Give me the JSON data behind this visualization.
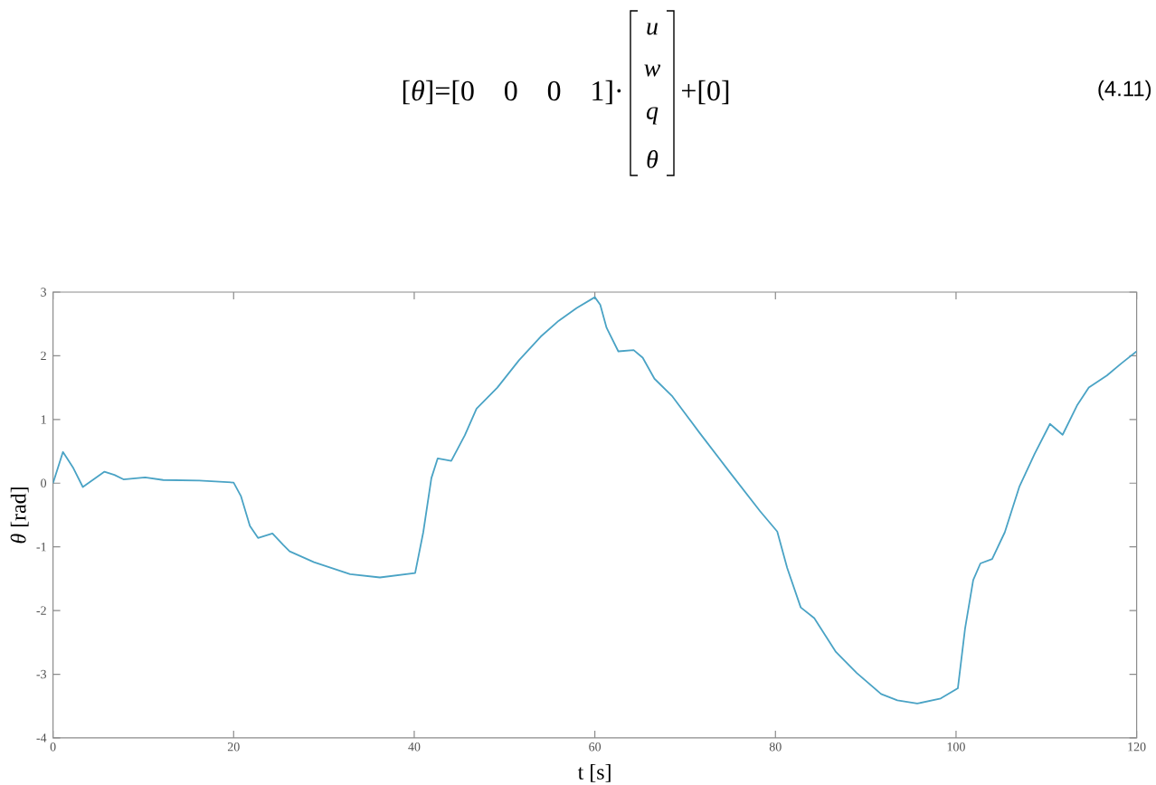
{
  "chart_data": {
    "type": "line",
    "xlabel": "t [s]",
    "ylabel": "*θ* [rad]",
    "x": [
      0,
      1.1,
      2.2,
      3.3,
      4.5,
      5.7,
      6.8,
      7.8,
      10.2,
      12.2,
      16.2,
      20.0,
      20.8,
      21.8,
      22.7,
      24.3,
      25.5,
      26.2,
      28.9,
      32.9,
      36.2,
      40.1,
      41.0,
      41.9,
      42.6,
      44.1,
      45.6,
      46.9,
      49.2,
      51.6,
      54.0,
      56.0,
      58.0,
      60.0,
      60.6,
      61.3,
      62.6,
      64.3,
      65.3,
      66.6,
      68.6,
      71.6,
      74.9,
      78.3,
      80.2,
      81.3,
      82.8,
      84.3,
      86.7,
      89.0,
      91.7,
      93.5,
      95.7,
      98.3,
      100.2,
      101.0,
      101.9,
      102.7,
      104.0,
      105.4,
      107.0,
      108.7,
      110.4,
      111.8,
      113.4,
      114.7,
      116.7,
      118.3,
      120.0
    ],
    "values": [
      0,
      0.49,
      0.25,
      -0.06,
      0.06,
      0.18,
      0.13,
      0.06,
      0.09,
      0.05,
      0.04,
      0.01,
      -0.2,
      -0.67,
      -0.86,
      -0.79,
      -0.97,
      -1.07,
      -1.24,
      -1.43,
      -1.48,
      -1.41,
      -0.77,
      0.08,
      0.39,
      0.35,
      0.75,
      1.17,
      1.5,
      1.93,
      2.3,
      2.55,
      2.75,
      2.92,
      2.8,
      2.44,
      2.07,
      2.09,
      1.97,
      1.64,
      1.36,
      0.79,
      0.18,
      -0.44,
      -0.76,
      -1.33,
      -1.95,
      -2.12,
      -2.65,
      -2.98,
      -3.31,
      -3.41,
      -3.46,
      -3.38,
      -3.22,
      -2.28,
      -1.52,
      -1.26,
      -1.19,
      -0.77,
      -0.06,
      0.46,
      0.93,
      0.76,
      1.22,
      1.5,
      1.69,
      1.88,
      2.07
    ],
    "color": "#4aa3c5",
    "xlim": [
      0,
      120
    ],
    "ylim": [
      -4,
      3
    ],
    "xticks": [
      0,
      20,
      40,
      60,
      80,
      100,
      120
    ],
    "yticks": [
      -4,
      -3,
      -2,
      -1,
      0,
      1,
      2,
      3
    ],
    "annotations": [
      "[*θ*]=[0 0 0 1]·",
      "u",
      "w",
      "q",
      "θ",
      "+[0]",
      "(4.11)"
    ]
  }
}
